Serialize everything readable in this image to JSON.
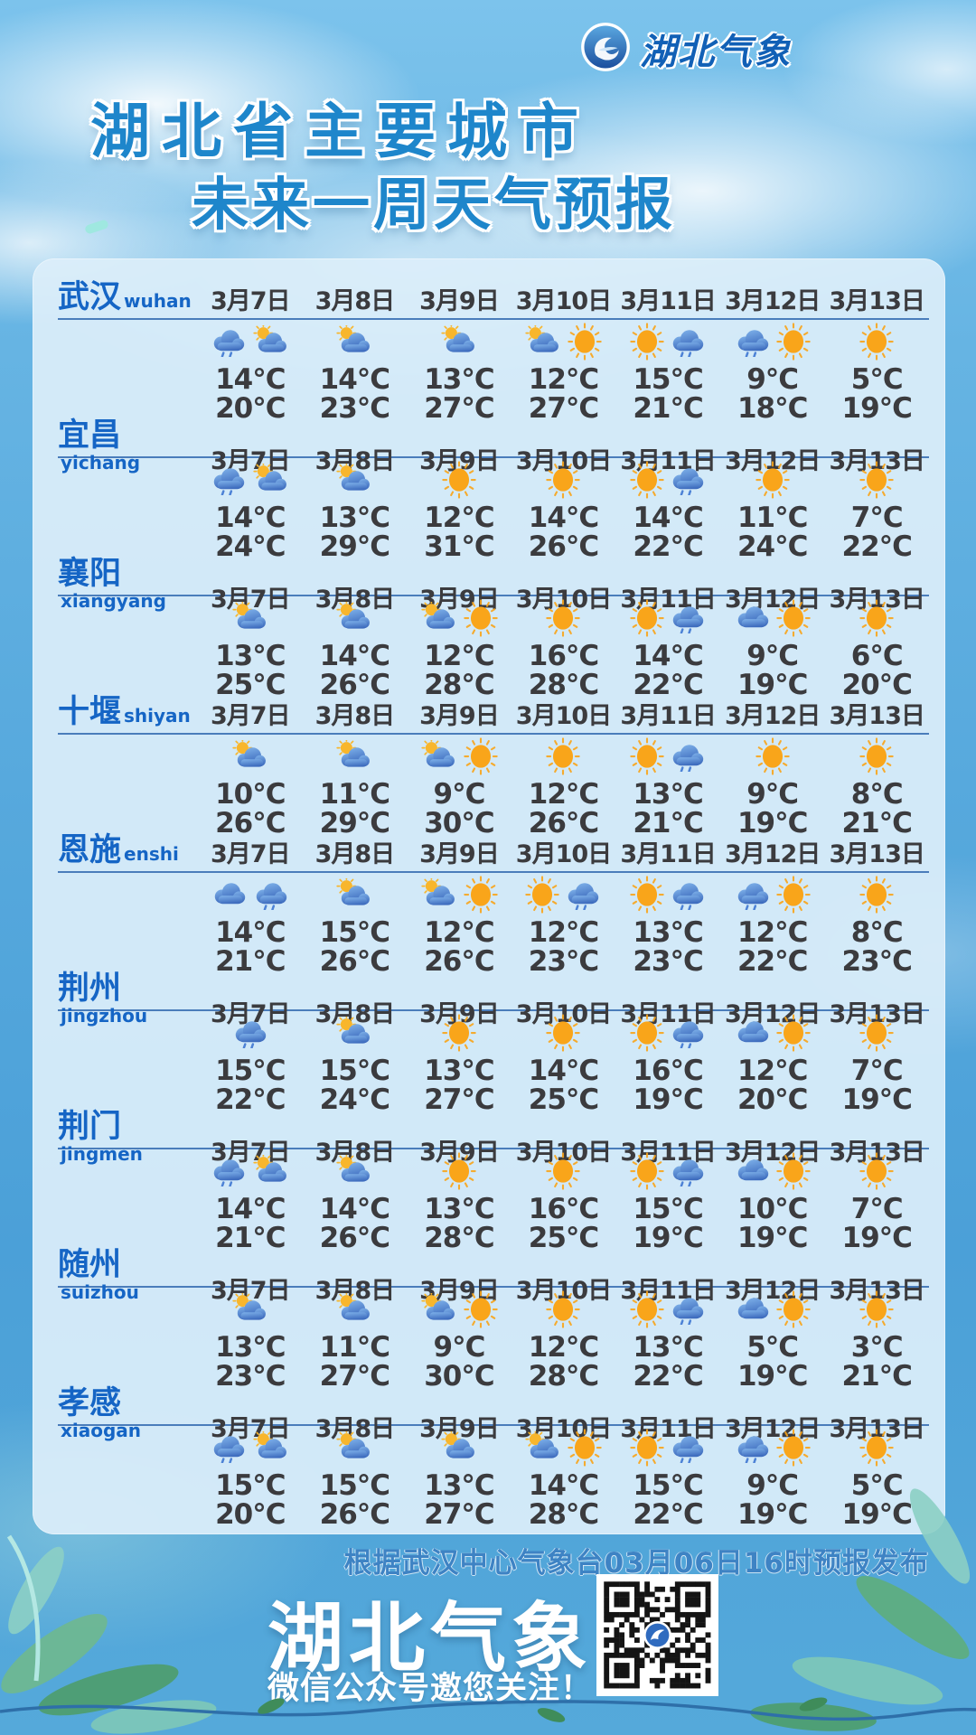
{
  "logo": {
    "text": "湖北气象"
  },
  "title": {
    "line1": "湖北省主要城市",
    "line2": "未来一周天气预报"
  },
  "dates": [
    "3月7日",
    "3月8日",
    "3月9日",
    "3月10日",
    "3月11日",
    "3月12日",
    "3月13日"
  ],
  "temp_unit": "°C",
  "cities": [
    {
      "name": "武汉",
      "pinyin": "wuhan",
      "days": [
        {
          "icons": [
            "rain",
            "partly"
          ],
          "low": 14,
          "high": 20
        },
        {
          "icons": [
            "partly"
          ],
          "low": 14,
          "high": 23
        },
        {
          "icons": [
            "partly"
          ],
          "low": 13,
          "high": 27
        },
        {
          "icons": [
            "partly",
            "sun"
          ],
          "low": 12,
          "high": 27
        },
        {
          "icons": [
            "sun",
            "rain"
          ],
          "low": 15,
          "high": 21
        },
        {
          "icons": [
            "rain",
            "sun"
          ],
          "low": 9,
          "high": 18
        },
        {
          "icons": [
            "sun"
          ],
          "low": 5,
          "high": 19
        }
      ]
    },
    {
      "name": "宜昌",
      "pinyin": "yichang",
      "days": [
        {
          "icons": [
            "rain",
            "partly"
          ],
          "low": 14,
          "high": 24
        },
        {
          "icons": [
            "partly"
          ],
          "low": 13,
          "high": 29
        },
        {
          "icons": [
            "sun"
          ],
          "low": 12,
          "high": 31
        },
        {
          "icons": [
            "sun"
          ],
          "low": 14,
          "high": 26
        },
        {
          "icons": [
            "sun",
            "rain"
          ],
          "low": 14,
          "high": 22
        },
        {
          "icons": [
            "sun"
          ],
          "low": 11,
          "high": 24
        },
        {
          "icons": [
            "sun"
          ],
          "low": 7,
          "high": 22
        }
      ]
    },
    {
      "name": "襄阳",
      "pinyin": "xiangyang",
      "days": [
        {
          "icons": [
            "partly"
          ],
          "low": 13,
          "high": 25
        },
        {
          "icons": [
            "partly"
          ],
          "low": 14,
          "high": 26
        },
        {
          "icons": [
            "partly",
            "sun"
          ],
          "low": 12,
          "high": 28
        },
        {
          "icons": [
            "sun"
          ],
          "low": 16,
          "high": 28
        },
        {
          "icons": [
            "sun",
            "rain"
          ],
          "low": 14,
          "high": 22
        },
        {
          "icons": [
            "cloud",
            "sun"
          ],
          "low": 9,
          "high": 19
        },
        {
          "icons": [
            "sun"
          ],
          "low": 6,
          "high": 20
        }
      ]
    },
    {
      "name": "十堰",
      "pinyin": "shiyan",
      "days": [
        {
          "icons": [
            "partly"
          ],
          "low": 10,
          "high": 26
        },
        {
          "icons": [
            "partly"
          ],
          "low": 11,
          "high": 29
        },
        {
          "icons": [
            "partly",
            "sun"
          ],
          "low": 9,
          "high": 30
        },
        {
          "icons": [
            "sun"
          ],
          "low": 12,
          "high": 26
        },
        {
          "icons": [
            "sun",
            "rain"
          ],
          "low": 13,
          "high": 21
        },
        {
          "icons": [
            "sun"
          ],
          "low": 9,
          "high": 19
        },
        {
          "icons": [
            "sun"
          ],
          "low": 8,
          "high": 21
        }
      ]
    },
    {
      "name": "恩施",
      "pinyin": "enshi",
      "days": [
        {
          "icons": [
            "cloud",
            "rain"
          ],
          "low": 14,
          "high": 21
        },
        {
          "icons": [
            "partly"
          ],
          "low": 15,
          "high": 26
        },
        {
          "icons": [
            "partly",
            "sun"
          ],
          "low": 12,
          "high": 26
        },
        {
          "icons": [
            "sun",
            "rain"
          ],
          "low": 12,
          "high": 23
        },
        {
          "icons": [
            "sun",
            "rain"
          ],
          "low": 13,
          "high": 23
        },
        {
          "icons": [
            "rain",
            "sun"
          ],
          "low": 12,
          "high": 22
        },
        {
          "icons": [
            "sun"
          ],
          "low": 8,
          "high": 23
        }
      ]
    },
    {
      "name": "荆州",
      "pinyin": "jingzhou",
      "days": [
        {
          "icons": [
            "rain"
          ],
          "low": 15,
          "high": 22
        },
        {
          "icons": [
            "partly"
          ],
          "low": 15,
          "high": 24
        },
        {
          "icons": [
            "sun"
          ],
          "low": 13,
          "high": 27
        },
        {
          "icons": [
            "sun"
          ],
          "low": 14,
          "high": 25
        },
        {
          "icons": [
            "sun",
            "rain"
          ],
          "low": 16,
          "high": 19
        },
        {
          "icons": [
            "cloud",
            "sun"
          ],
          "low": 12,
          "high": 20
        },
        {
          "icons": [
            "sun"
          ],
          "low": 7,
          "high": 19
        }
      ]
    },
    {
      "name": "荆门",
      "pinyin": "jingmen",
      "days": [
        {
          "icons": [
            "rain",
            "partly"
          ],
          "low": 14,
          "high": 21
        },
        {
          "icons": [
            "partly"
          ],
          "low": 14,
          "high": 26
        },
        {
          "icons": [
            "sun"
          ],
          "low": 13,
          "high": 28
        },
        {
          "icons": [
            "sun"
          ],
          "low": 16,
          "high": 25
        },
        {
          "icons": [
            "sun",
            "rain"
          ],
          "low": 15,
          "high": 19
        },
        {
          "icons": [
            "cloud",
            "sun"
          ],
          "low": 10,
          "high": 19
        },
        {
          "icons": [
            "sun"
          ],
          "low": 7,
          "high": 19
        }
      ]
    },
    {
      "name": "随州",
      "pinyin": "suizhou",
      "days": [
        {
          "icons": [
            "partly"
          ],
          "low": 13,
          "high": 23
        },
        {
          "icons": [
            "partly"
          ],
          "low": 11,
          "high": 27
        },
        {
          "icons": [
            "partly",
            "sun"
          ],
          "low": 9,
          "high": 30
        },
        {
          "icons": [
            "sun"
          ],
          "low": 12,
          "high": 28
        },
        {
          "icons": [
            "sun",
            "rain"
          ],
          "low": 13,
          "high": 22
        },
        {
          "icons": [
            "cloud",
            "sun"
          ],
          "low": 5,
          "high": 19
        },
        {
          "icons": [
            "sun"
          ],
          "low": 3,
          "high": 21
        }
      ]
    },
    {
      "name": "孝感",
      "pinyin": "xiaogan",
      "days": [
        {
          "icons": [
            "rain",
            "partly"
          ],
          "low": 15,
          "high": 20
        },
        {
          "icons": [
            "partly"
          ],
          "low": 15,
          "high": 26
        },
        {
          "icons": [
            "partly"
          ],
          "low": 13,
          "high": 27
        },
        {
          "icons": [
            "partly",
            "sun"
          ],
          "low": 14,
          "high": 28
        },
        {
          "icons": [
            "sun",
            "rain"
          ],
          "low": 15,
          "high": 22
        },
        {
          "icons": [
            "rain",
            "sun"
          ],
          "low": 9,
          "high": 19
        },
        {
          "icons": [
            "sun"
          ],
          "low": 5,
          "high": 19
        }
      ]
    }
  ],
  "footer": {
    "source": "根据武汉中心气象台03月06日16时预报发布",
    "brand": "湖北气象",
    "tagline": "微信公众号邀您关注！"
  },
  "colors": {
    "sky_top": "#7cc3ec",
    "sky_bottom": "#4ba0d8",
    "card_bg": "#dbeefa",
    "title_blue": "#1e86cb",
    "city_blue": "#1565c5",
    "text_dark": "#3b3b3e",
    "source_blue": "#3e83c4",
    "sun": "#f9a51a",
    "cloud_light": "#7fb2ea",
    "cloud_dark": "#3e6cbe"
  }
}
